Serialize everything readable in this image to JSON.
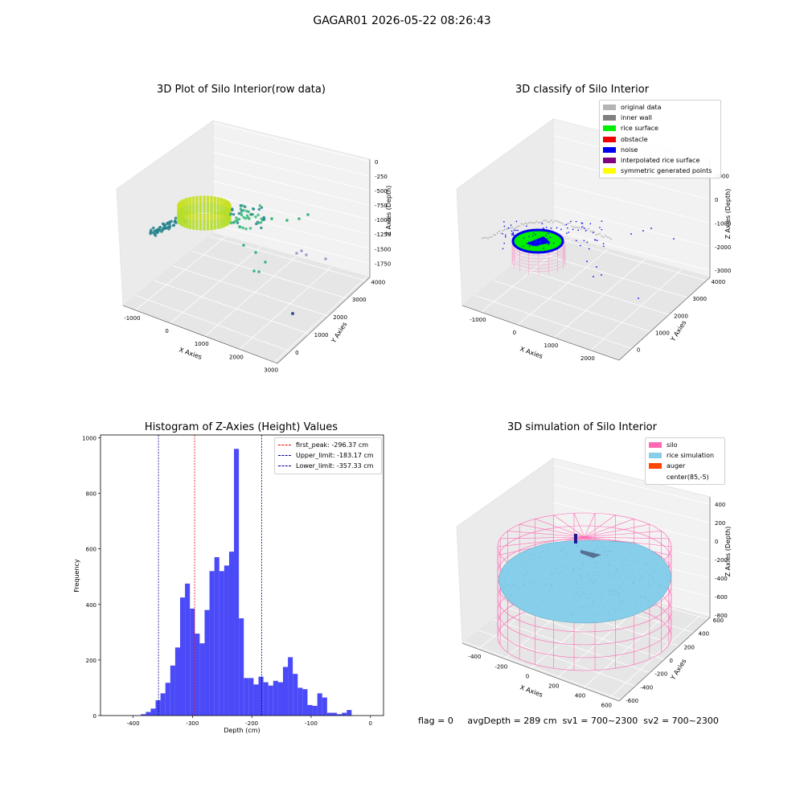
{
  "suptitle": "GAGAR01 2026-05-22 08:26:43",
  "status": {
    "flag": "flag = 0",
    "avg_depth": "avgDepth = 289 cm",
    "sv1": "sv1 = 700~2300",
    "sv2": "sv2 = 700~2300"
  },
  "chart_data": [
    {
      "type": "scatter",
      "title": "3D Plot of Silo Interior(row data)",
      "xlabel": "X Axies",
      "ylabel": "Y Axies",
      "zlabel": "Z Axies (Depth)",
      "x_ticks": [
        "-1000",
        "0",
        "1000",
        "2000",
        "3000"
      ],
      "y_ticks": [
        "0",
        "1000",
        "2000",
        "3000",
        "4000"
      ],
      "z_ticks": [
        "0",
        "-250",
        "-500",
        "-750",
        "-1000",
        "-1250",
        "-1500",
        "-1750"
      ],
      "colors": {
        "ring": "#b5de2b",
        "cluster": "#35b779",
        "sparse": "#26828e",
        "far": "#3b528b",
        "light": "#a59ec9"
      }
    },
    {
      "type": "scatter",
      "title": "3D classify of Silo Interior",
      "xlabel": "X Axies",
      "ylabel": "Y Axies",
      "zlabel": "Z Axies (Depth)",
      "x_ticks": [
        "-1000",
        "0",
        "1000",
        "2000"
      ],
      "y_ticks": [
        "0",
        "1000",
        "2000",
        "3000",
        "4000"
      ],
      "z_ticks": [
        "1000",
        "0",
        "-1000",
        "-2000",
        "-3000"
      ],
      "legend": [
        {
          "label": "original data",
          "color": "#b4b4b4"
        },
        {
          "label": "inner wall",
          "color": "#808080"
        },
        {
          "label": "rice surface",
          "color": "#00ee00"
        },
        {
          "label": "obstacle",
          "color": "#ee0000"
        },
        {
          "label": "noise",
          "color": "#0000ee"
        },
        {
          "label": "interpolated rice surface",
          "color": "#800080"
        },
        {
          "label": "symmetric generated points",
          "color": "#ffff00"
        }
      ]
    },
    {
      "type": "bar",
      "title": "Histogram of Z-Axies (Height) Values",
      "xlabel": "Depth (cm)",
      "ylabel": "Frequency",
      "xlim": [
        -455,
        22
      ],
      "ylim": [
        0,
        1010
      ],
      "x_ticks": [
        -400,
        -300,
        -200,
        -100,
        0
      ],
      "y_ticks": [
        0,
        200,
        400,
        600,
        800,
        1000
      ],
      "bar_color": "#4a4af8",
      "bins": {
        "start": -436.5,
        "width": 8.26,
        "values": [
          0,
          0,
          0,
          0,
          0,
          0,
          5,
          13,
          25,
          55,
          80,
          118,
          180,
          245,
          425,
          475,
          385,
          295,
          260,
          380,
          520,
          570,
          520,
          540,
          590,
          960,
          350,
          135,
          135,
          112,
          140,
          120,
          108,
          125,
          120,
          175,
          210,
          150,
          100,
          95,
          38,
          35,
          80,
          65,
          10,
          10,
          5,
          10,
          20
        ]
      },
      "vlines": [
        {
          "label": "first_peak: -296.37 cm",
          "x": -296.37,
          "color": "#ee0000"
        },
        {
          "label": "Upper_limit: -183.17 cm",
          "x": -183.17,
          "color": "#00008b"
        },
        {
          "label": "Lower_limit: -357.33 cm",
          "x": -357.33,
          "color": "#00008b"
        }
      ]
    },
    {
      "type": "scatter",
      "title": "3D simulation of Silo Interior",
      "xlabel": "X Axies",
      "ylabel": "Y Axies",
      "zlabel": "Z Axies (Depth)",
      "x_ticks": [
        "-400",
        "-200",
        "0",
        "200",
        "400",
        "600"
      ],
      "y_ticks": [
        "-600",
        "-400",
        "-200",
        "0",
        "200",
        "400",
        "600"
      ],
      "z_ticks": [
        "400",
        "200",
        "0",
        "-200",
        "-400",
        "-600",
        "-800"
      ],
      "legend": [
        {
          "label": "silo",
          "color": "#ff69b4"
        },
        {
          "label": "rice simulation",
          "color": "#87ceeb"
        },
        {
          "label": "auger",
          "color": "#ff4500"
        },
        {
          "label": "center(85,-5)",
          "color": "#ffffff"
        }
      ]
    }
  ]
}
